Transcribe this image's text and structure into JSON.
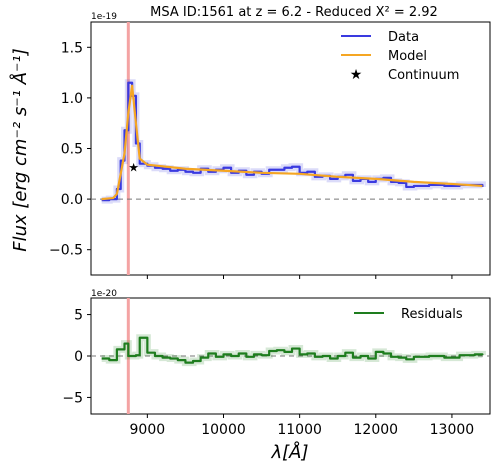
{
  "chart_data": [
    {
      "type": "line",
      "title": "MSA ID:1561 at z = 6.2 - Reduced X² = 2.92",
      "offset_text": "1e-19",
      "ylabel": "Flux [erg cm⁻² s⁻¹ Å⁻¹]",
      "xlim": [
        8260,
        13500
      ],
      "ylim": [
        -0.75,
        1.75
      ],
      "yticks": [
        -0.5,
        0.0,
        0.5,
        1.0,
        1.5
      ],
      "ytick_labels": [
        "−0.5",
        "0.0",
        "0.5",
        "1.0",
        "1.5"
      ],
      "grid": false,
      "legend_placement": "top-right",
      "vline_x": 8750,
      "vline_color": "#f4a3a3",
      "series": [
        {
          "name": "Data",
          "style": "step",
          "color": "#3a3ae0",
          "x": [
            8400,
            8500,
            8600,
            8650,
            8700,
            8750,
            8800,
            8850,
            8900,
            9000,
            9100,
            9200,
            9300,
            9400,
            9500,
            9600,
            9700,
            9800,
            9900,
            10000,
            10100,
            10200,
            10300,
            10400,
            10500,
            10600,
            10700,
            10800,
            10900,
            11000,
            11100,
            11200,
            11300,
            11400,
            11500,
            11600,
            11700,
            11800,
            11900,
            12000,
            12100,
            12200,
            12300,
            12400,
            12500,
            12700,
            12900,
            13100,
            13300,
            13400
          ],
          "y": [
            -0.01,
            0.0,
            0.1,
            0.38,
            0.68,
            1.15,
            1.02,
            0.55,
            0.35,
            0.33,
            0.31,
            0.3,
            0.28,
            0.29,
            0.27,
            0.26,
            0.3,
            0.27,
            0.29,
            0.31,
            0.26,
            0.28,
            0.24,
            0.27,
            0.25,
            0.29,
            0.29,
            0.31,
            0.32,
            0.26,
            0.27,
            0.22,
            0.23,
            0.2,
            0.22,
            0.24,
            0.18,
            0.2,
            0.17,
            0.2,
            0.21,
            0.17,
            0.16,
            0.12,
            0.13,
            0.14,
            0.13,
            0.14,
            0.14,
            0.12
          ]
        },
        {
          "name": "Model",
          "style": "line",
          "color": "#f5a623",
          "x": [
            8400,
            8550,
            8600,
            8700,
            8750,
            8800,
            8850,
            8900,
            9000,
            9500,
            10000,
            10500,
            11000,
            11500,
            12000,
            12500,
            13000,
            13400
          ],
          "y": [
            0.0,
            0.01,
            0.05,
            0.45,
            0.85,
            1.12,
            0.75,
            0.4,
            0.34,
            0.3,
            0.28,
            0.26,
            0.25,
            0.22,
            0.2,
            0.17,
            0.15,
            0.13
          ]
        },
        {
          "name": "Continuum",
          "style": "marker",
          "color": "#000000",
          "x": [
            8820
          ],
          "y": [
            0.32
          ]
        }
      ]
    },
    {
      "type": "line",
      "offset_text": "1e-20",
      "xlabel": "λ[Å]",
      "xlim": [
        8260,
        13500
      ],
      "ylim": [
        -7,
        7
      ],
      "xticks": [
        9000,
        10000,
        11000,
        12000,
        13000
      ],
      "xtick_labels": [
        "9000",
        "10000",
        "11000",
        "12000",
        "13000"
      ],
      "yticks": [
        -5,
        0,
        5
      ],
      "ytick_labels": [
        "−5",
        "0",
        "5"
      ],
      "grid": false,
      "legend_placement": "top-right",
      "vline_x": 8750,
      "vline_color": "#f4a3a3",
      "series": [
        {
          "name": "Residuals",
          "style": "step",
          "color": "#1e7d1e",
          "x": [
            8400,
            8500,
            8600,
            8700,
            8750,
            8850,
            8900,
            9000,
            9100,
            9200,
            9300,
            9400,
            9500,
            9600,
            9700,
            9800,
            9900,
            10000,
            10100,
            10200,
            10300,
            10400,
            10500,
            10600,
            10700,
            10800,
            10900,
            11000,
            11100,
            11200,
            11300,
            11400,
            11500,
            11600,
            11700,
            11800,
            11900,
            12000,
            12100,
            12200,
            12300,
            12400,
            12500,
            12700,
            12900,
            13100,
            13300,
            13400
          ],
          "y": [
            -0.3,
            -0.5,
            0.8,
            1.5,
            0.0,
            0.1,
            2.2,
            0.4,
            0.0,
            -0.2,
            -0.3,
            -0.5,
            -0.8,
            -0.6,
            -0.2,
            0.3,
            -0.1,
            0.2,
            0.0,
            0.3,
            -0.1,
            0.2,
            0.1,
            0.6,
            0.7,
            0.5,
            0.9,
            0.2,
            0.3,
            -0.1,
            0.0,
            -0.3,
            0.0,
            0.4,
            -0.2,
            0.0,
            -0.3,
            0.5,
            0.3,
            -0.1,
            -0.2,
            -0.4,
            -0.1,
            0.0,
            -0.2,
            0.1,
            0.2,
            0.1
          ]
        }
      ]
    }
  ]
}
